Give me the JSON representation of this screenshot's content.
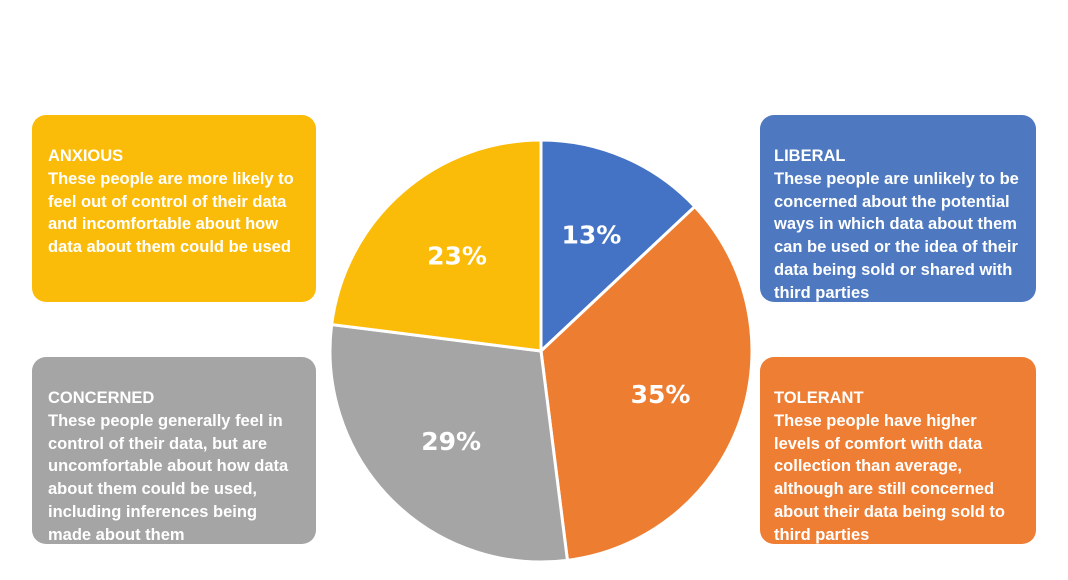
{
  "chart_data": {
    "type": "pie",
    "title": "",
    "slices": [
      {
        "name": "LIBERAL",
        "value": 13,
        "label": "13%",
        "color": "#4472c4"
      },
      {
        "name": "TOLERANT",
        "value": 35,
        "label": "35%",
        "color": "#ed7d31"
      },
      {
        "name": "CONCERNED",
        "value": 29,
        "label": "29%",
        "color": "#a5a5a5"
      },
      {
        "name": "ANXIOUS",
        "value": 23,
        "label": "23%",
        "color": "#fbbc09"
      }
    ],
    "start": "top",
    "direction": "clockwise"
  },
  "panels": {
    "anxious": {
      "title": "ANXIOUS",
      "text": "These people are more likely to feel out of control of their data and incomfortable about how data about them could be used",
      "color": "#fbbc09"
    },
    "concerned": {
      "title": "CONCERNED",
      "text": "These people generally feel in control of their data, but are uncomfortable about how data about them could be used, including inferences being made about them",
      "color": "#a5a5a5"
    },
    "liberal": {
      "title": "LIBERAL",
      "text": "These people are unlikely to be concerned about the potential ways in which data about them can be used or the idea of their data being sold or shared with third parties",
      "color": "#4e79c0"
    },
    "tolerant": {
      "title": "TOLERANT",
      "text": "These people have higher levels of comfort with data collection than average, although are still concerned about their data being sold to third parties",
      "color": "#ee7e33"
    }
  }
}
